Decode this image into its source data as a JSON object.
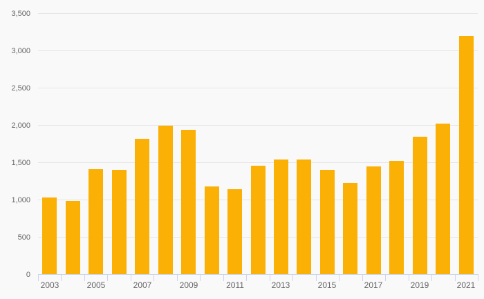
{
  "chart_data": {
    "type": "bar",
    "title": "",
    "xlabel": "",
    "ylabel": "",
    "categories": [
      "2003",
      "2004",
      "2005",
      "2006",
      "2007",
      "2008",
      "2009",
      "2010",
      "2011",
      "2012",
      "2013",
      "2014",
      "2015",
      "2016",
      "2017",
      "2018",
      "2019",
      "2020",
      "2021"
    ],
    "values": [
      1030,
      985,
      1410,
      1400,
      1815,
      1990,
      1935,
      1180,
      1140,
      1450,
      1540,
      1540,
      1395,
      1225,
      1445,
      1515,
      1840,
      2020,
      3190
    ],
    "ylim": [
      0,
      3500
    ],
    "ytick_step": 500,
    "ytick_labels": [
      "0",
      "500",
      "1,000",
      "1,500",
      "2,000",
      "2,500",
      "3,000",
      "3,500"
    ],
    "xtick_labels_shown": [
      "2003",
      "2005",
      "2007",
      "2009",
      "2011",
      "2013",
      "2015",
      "2017",
      "2019",
      "2021"
    ],
    "grid": true,
    "legend": "none",
    "colors": {
      "bar": "#FAB005",
      "grid": "#e6e6e6",
      "axis_line": "#ccd6eb",
      "label_text": "#666666",
      "background": "#f9f9f9"
    }
  }
}
